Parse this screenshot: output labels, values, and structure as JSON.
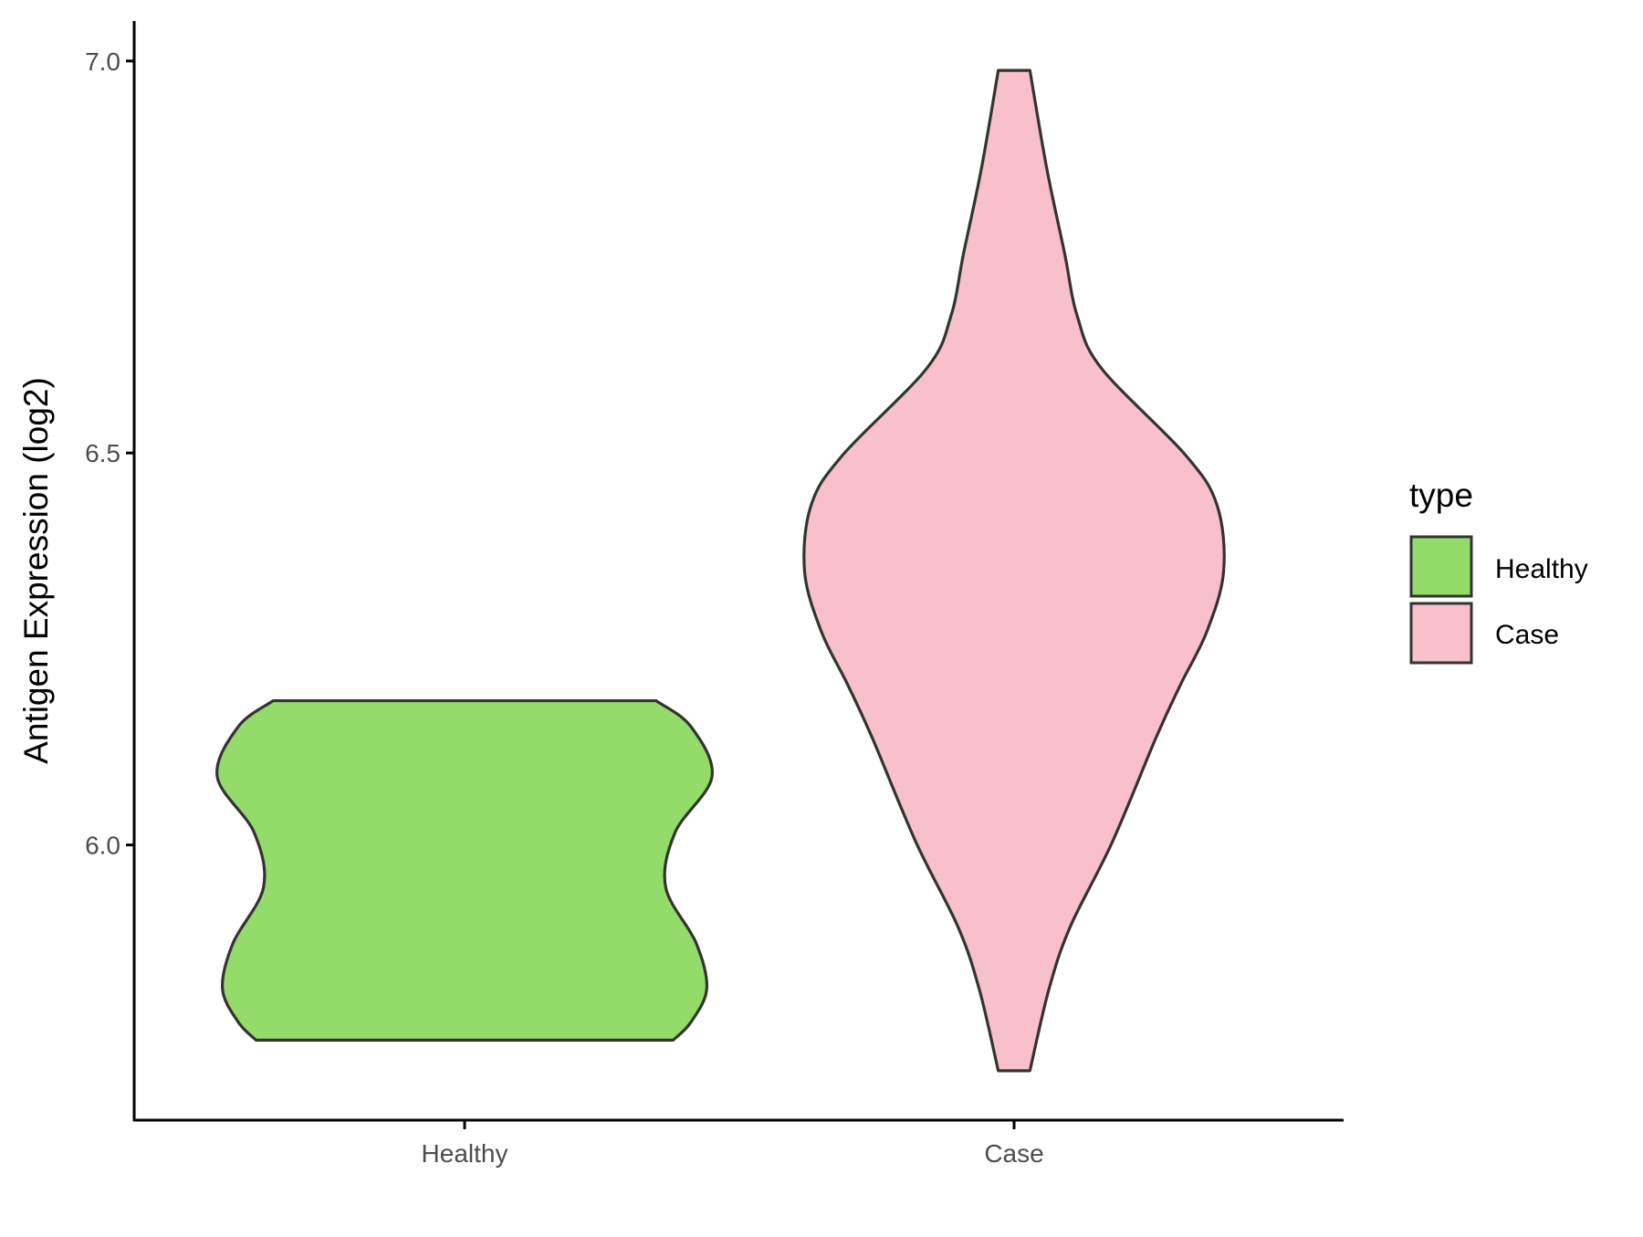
{
  "chart_data": {
    "type": "violin",
    "title": "",
    "xlabel": "",
    "ylabel": "Antigen Expression (log2)",
    "categories": [
      "Healthy",
      "Case"
    ],
    "yticks": [
      6.0,
      6.5,
      7.0
    ],
    "ytick_labels": [
      "6.0",
      "6.5",
      "7.0"
    ],
    "ylim": [
      5.649,
      7.051
    ],
    "grid": false,
    "legend": {
      "title": "type",
      "position": "right",
      "entries": [
        "Healthy",
        "Case"
      ]
    },
    "colors": {
      "Healthy": "#93DC6A",
      "Case": "#F8C0CB",
      "outline": "#333333"
    },
    "series": [
      {
        "name": "Healthy",
        "profile": [
          [
            6.184,
            0.774
          ],
          [
            6.151,
            0.915
          ],
          [
            6.087,
            1.0
          ],
          [
            6.016,
            0.851
          ],
          [
            5.946,
            0.813
          ],
          [
            5.875,
            0.936
          ],
          [
            5.817,
            0.979
          ],
          [
            5.774,
            0.915
          ],
          [
            5.751,
            0.843
          ]
        ]
      },
      {
        "name": "Case",
        "profile": [
          [
            6.988,
            0.064
          ],
          [
            6.863,
            0.132
          ],
          [
            6.755,
            0.204
          ],
          [
            6.675,
            0.255
          ],
          [
            6.608,
            0.353
          ],
          [
            6.497,
            0.694
          ],
          [
            6.433,
            0.821
          ],
          [
            6.349,
            0.847
          ],
          [
            6.272,
            0.779
          ],
          [
            6.204,
            0.672
          ],
          [
            6.137,
            0.574
          ],
          [
            6.003,
            0.396
          ],
          [
            5.895,
            0.226
          ],
          [
            5.815,
            0.14
          ],
          [
            5.712,
            0.064
          ]
        ]
      }
    ]
  }
}
